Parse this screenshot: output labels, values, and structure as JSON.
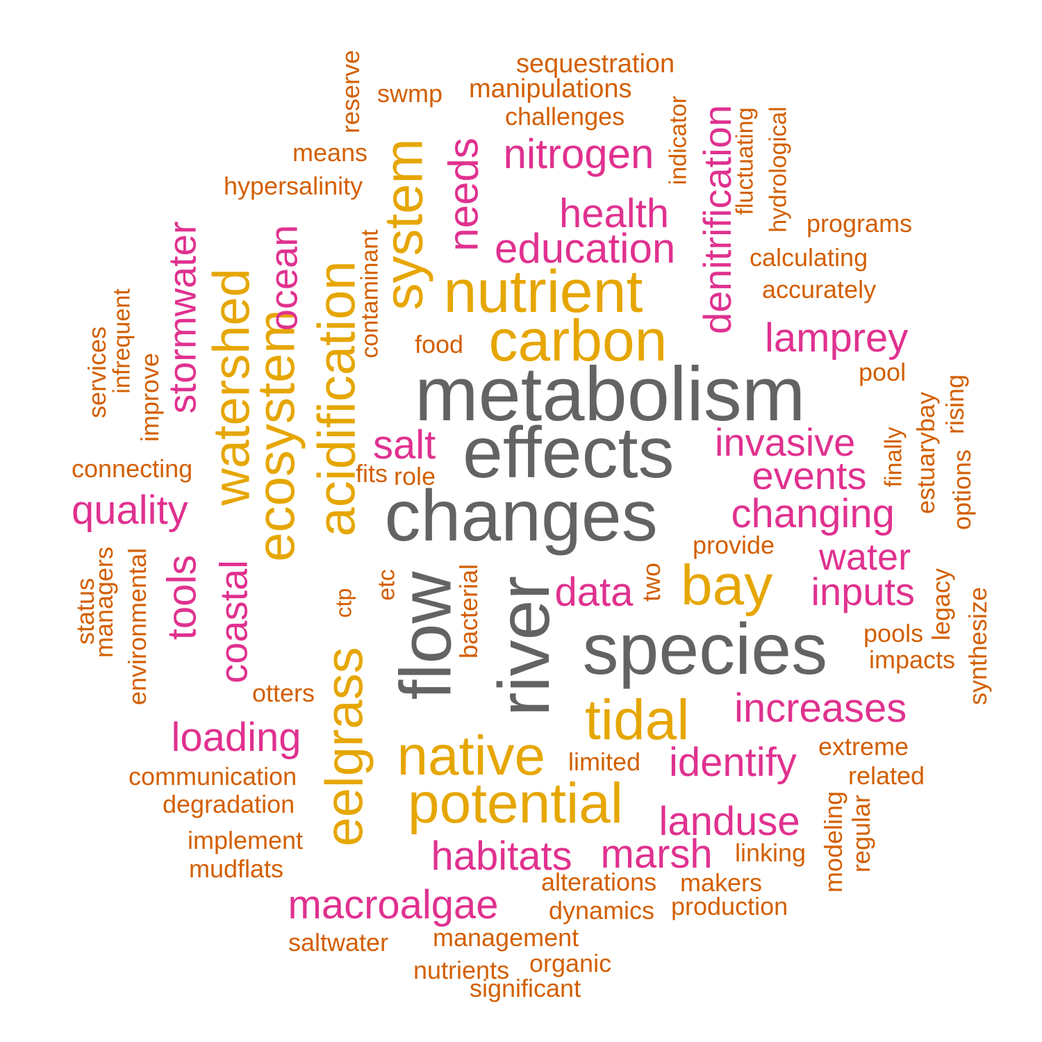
{
  "palette": {
    "gray": "#636363",
    "gold": "#e6a600",
    "magenta": "#e0318f",
    "orange": "#d35f00"
  },
  "words": [
    {
      "text": "metabolism",
      "group": "gray"
    },
    {
      "text": "effects",
      "group": "gray"
    },
    {
      "text": "changes",
      "group": "gray"
    },
    {
      "text": "species",
      "group": "gray"
    },
    {
      "text": "river",
      "group": "gray"
    },
    {
      "text": "flow",
      "group": "gray"
    },
    {
      "text": "nutrient",
      "group": "gold"
    },
    {
      "text": "carbon",
      "group": "gold"
    },
    {
      "text": "system",
      "group": "gold"
    },
    {
      "text": "acidification",
      "group": "gold"
    },
    {
      "text": "ecosystem",
      "group": "gold"
    },
    {
      "text": "watershed",
      "group": "gold"
    },
    {
      "text": "eelgrass",
      "group": "gold"
    },
    {
      "text": "native",
      "group": "gold"
    },
    {
      "text": "potential",
      "group": "gold"
    },
    {
      "text": "tidal",
      "group": "gold"
    },
    {
      "text": "bay",
      "group": "gold"
    },
    {
      "text": "nitrogen",
      "group": "magenta"
    },
    {
      "text": "health",
      "group": "magenta"
    },
    {
      "text": "education",
      "group": "magenta"
    },
    {
      "text": "needs",
      "group": "magenta"
    },
    {
      "text": "denitrification",
      "group": "magenta"
    },
    {
      "text": "lamprey",
      "group": "magenta"
    },
    {
      "text": "invasive",
      "group": "magenta"
    },
    {
      "text": "events",
      "group": "magenta"
    },
    {
      "text": "changing",
      "group": "magenta"
    },
    {
      "text": "water",
      "group": "magenta"
    },
    {
      "text": "inputs",
      "group": "magenta"
    },
    {
      "text": "data",
      "group": "magenta"
    },
    {
      "text": "salt",
      "group": "magenta"
    },
    {
      "text": "quality",
      "group": "magenta"
    },
    {
      "text": "stormwater",
      "group": "magenta"
    },
    {
      "text": "tools",
      "group": "magenta"
    },
    {
      "text": "coastal",
      "group": "magenta"
    },
    {
      "text": "ocean",
      "group": "magenta"
    },
    {
      "text": "loading",
      "group": "magenta"
    },
    {
      "text": "increases",
      "group": "magenta"
    },
    {
      "text": "identify",
      "group": "magenta"
    },
    {
      "text": "landuse",
      "group": "magenta"
    },
    {
      "text": "habitats",
      "group": "magenta"
    },
    {
      "text": "marsh",
      "group": "magenta"
    },
    {
      "text": "macroalgae",
      "group": "magenta"
    },
    {
      "text": "sequestration",
      "group": "orange"
    },
    {
      "text": "manipulations",
      "group": "orange"
    },
    {
      "text": "challenges",
      "group": "orange"
    },
    {
      "text": "swmp",
      "group": "orange"
    },
    {
      "text": "reserve",
      "group": "orange"
    },
    {
      "text": "means",
      "group": "orange"
    },
    {
      "text": "hypersalinity",
      "group": "orange"
    },
    {
      "text": "indicator",
      "group": "orange"
    },
    {
      "text": "fluctuating",
      "group": "orange"
    },
    {
      "text": "hydrological",
      "group": "orange"
    },
    {
      "text": "programs",
      "group": "orange"
    },
    {
      "text": "calculating",
      "group": "orange"
    },
    {
      "text": "accurately",
      "group": "orange"
    },
    {
      "text": "contaminant",
      "group": "orange"
    },
    {
      "text": "food",
      "group": "orange"
    },
    {
      "text": "pool",
      "group": "orange"
    },
    {
      "text": "rising",
      "group": "orange"
    },
    {
      "text": "estuarybay",
      "group": "orange"
    },
    {
      "text": "finally",
      "group": "orange"
    },
    {
      "text": "options",
      "group": "orange"
    },
    {
      "text": "services",
      "group": "orange"
    },
    {
      "text": "infrequent",
      "group": "orange"
    },
    {
      "text": "improve",
      "group": "orange"
    },
    {
      "text": "connecting",
      "group": "orange"
    },
    {
      "text": "fits",
      "group": "orange"
    },
    {
      "text": "role",
      "group": "orange"
    },
    {
      "text": "provide",
      "group": "orange"
    },
    {
      "text": "two",
      "group": "orange"
    },
    {
      "text": "etc",
      "group": "orange"
    },
    {
      "text": "ctp",
      "group": "orange"
    },
    {
      "text": "bacterial",
      "group": "orange"
    },
    {
      "text": "legacy",
      "group": "orange"
    },
    {
      "text": "synthesize",
      "group": "orange"
    },
    {
      "text": "pools",
      "group": "orange"
    },
    {
      "text": "impacts",
      "group": "orange"
    },
    {
      "text": "status",
      "group": "orange"
    },
    {
      "text": "managers",
      "group": "orange"
    },
    {
      "text": "environmental",
      "group": "orange"
    },
    {
      "text": "otters",
      "group": "orange"
    },
    {
      "text": "extreme",
      "group": "orange"
    },
    {
      "text": "limited",
      "group": "orange"
    },
    {
      "text": "related",
      "group": "orange"
    },
    {
      "text": "communication",
      "group": "orange"
    },
    {
      "text": "degradation",
      "group": "orange"
    },
    {
      "text": "modeling",
      "group": "orange"
    },
    {
      "text": "regular",
      "group": "orange"
    },
    {
      "text": "implement",
      "group": "orange"
    },
    {
      "text": "linking",
      "group": "orange"
    },
    {
      "text": "mudflats",
      "group": "orange"
    },
    {
      "text": "alterations",
      "group": "orange"
    },
    {
      "text": "makers",
      "group": "orange"
    },
    {
      "text": "dynamics",
      "group": "orange"
    },
    {
      "text": "production",
      "group": "orange"
    },
    {
      "text": "saltwater",
      "group": "orange"
    },
    {
      "text": "management",
      "group": "orange"
    },
    {
      "text": "organic",
      "group": "orange"
    },
    {
      "text": "nutrients",
      "group": "orange"
    },
    {
      "text": "significant",
      "group": "orange"
    }
  ]
}
